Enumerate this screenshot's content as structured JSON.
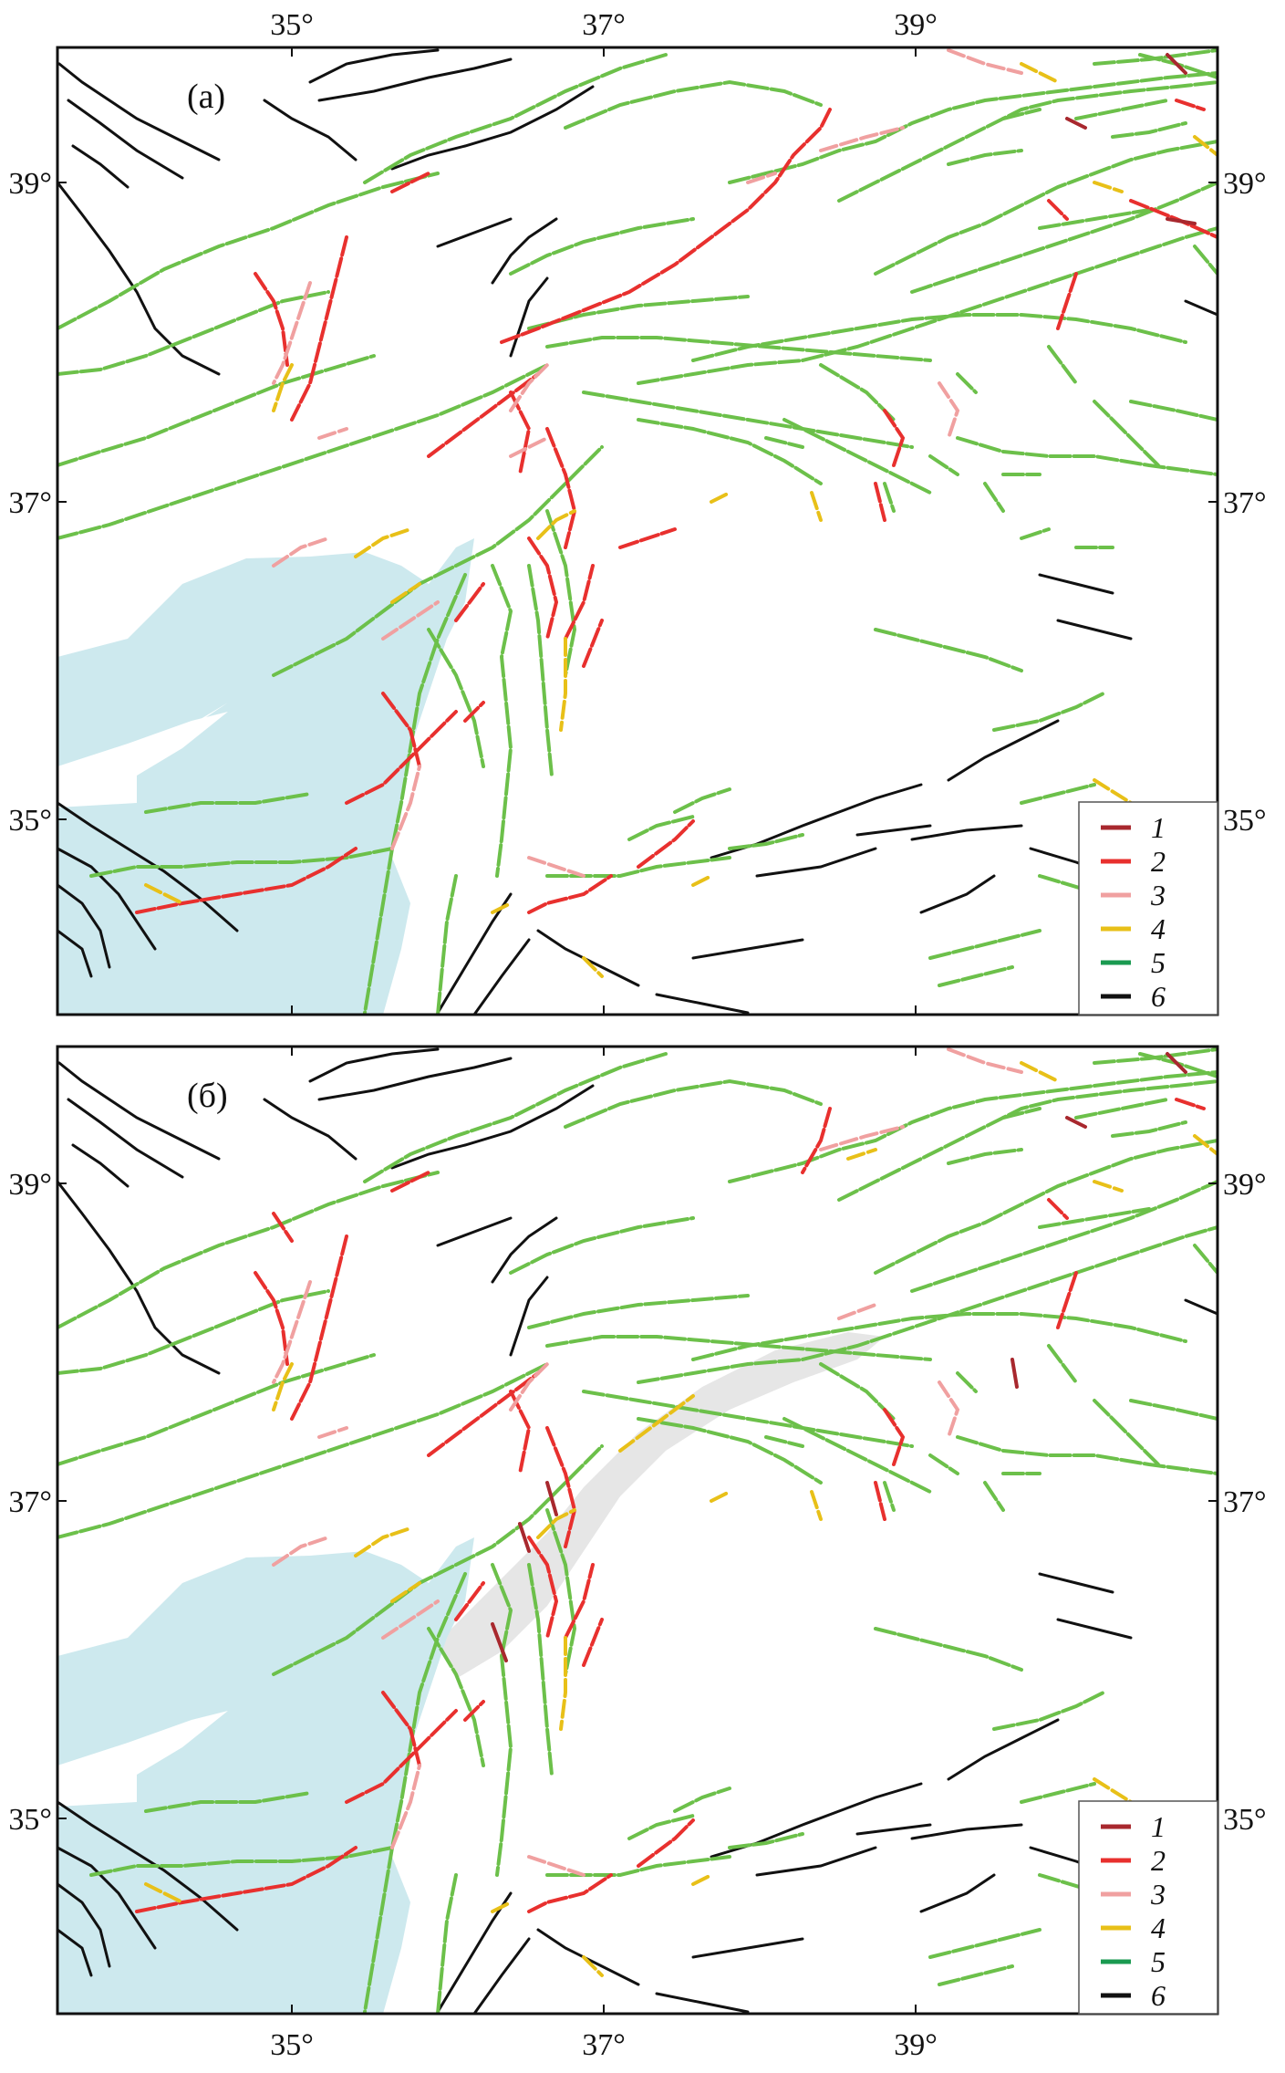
{
  "x_ticks": [
    "35°",
    "37°",
    "39°"
  ],
  "y_ticks": [
    "39°",
    "37°",
    "35°"
  ],
  "colors": {
    "cat1": "#a8282e",
    "cat2": "#e8302e",
    "cat3": "#f0a0a0",
    "cat4": "#e8c018",
    "cat5": "#1a9a50",
    "cat6": "#111111",
    "green_faults": "#6cc04a",
    "sea": "#cde9ee",
    "highlight": "#e6e6e6"
  },
  "panels": [
    {
      "label": "(а)",
      "legend": [
        "1",
        "2",
        "3",
        "4",
        "5",
        "6"
      ]
    },
    {
      "label": "(б)",
      "legend": [
        "1",
        "2",
        "3",
        "4",
        "5",
        "6"
      ]
    }
  ]
}
